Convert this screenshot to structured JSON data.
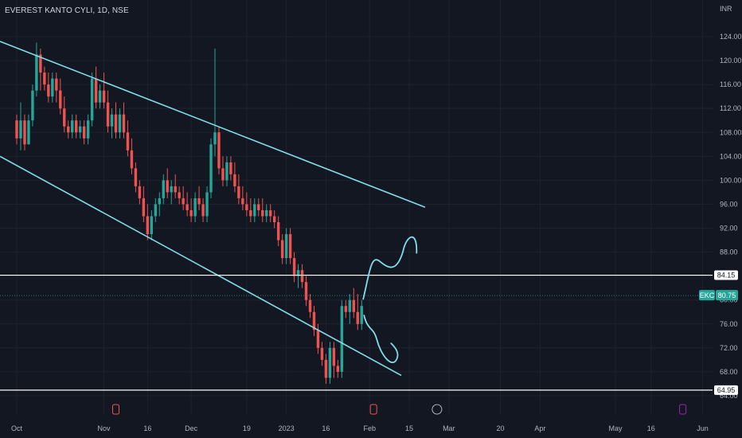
{
  "header": {
    "title": "EVEREST KANTO CYLI, 1D, NSE"
  },
  "chart_data": {
    "type": "candlestick",
    "currency_label": "INR",
    "y_ticks": [
      "124.00",
      "120.00",
      "116.00",
      "112.00",
      "108.00",
      "104.00",
      "100.00",
      "96.00",
      "92.00",
      "88.00",
      "84.00",
      "80.00",
      "76.00",
      "72.00",
      "68.00",
      "64.00"
    ],
    "y_values": [
      124,
      120,
      116,
      112,
      108,
      104,
      100,
      96,
      92,
      88,
      84,
      80,
      76,
      72,
      68,
      64
    ],
    "ylim": [
      62.2,
      126.3
    ],
    "x_ticks": [
      {
        "label": "Oct",
        "i": 0
      },
      {
        "label": "Nov",
        "i": 22
      },
      {
        "label": "16",
        "i": 33
      },
      {
        "label": "Dec",
        "i": 44
      },
      {
        "label": "19",
        "i": 58
      },
      {
        "label": "2023",
        "i": 68
      },
      {
        "label": "16",
        "i": 78
      },
      {
        "label": "Feb",
        "i": 89
      },
      {
        "label": "15",
        "i": 99
      },
      {
        "label": "Mar",
        "i": 109
      },
      {
        "label": "20",
        "i": 122
      },
      {
        "label": "Apr",
        "i": 132
      },
      {
        "label": "May",
        "i": 151
      },
      {
        "label": "16",
        "i": 160
      },
      {
        "label": "Jun",
        "i": 173
      }
    ],
    "candles": [
      [
        110,
        111,
        106,
        107
      ],
      [
        107,
        113,
        105,
        110
      ],
      [
        110,
        111,
        105,
        106
      ],
      [
        106,
        111,
        106,
        110
      ],
      [
        110,
        116,
        109,
        115
      ],
      [
        115,
        123,
        114,
        121
      ],
      [
        121,
        122,
        115,
        118
      ],
      [
        118,
        119,
        115,
        116
      ],
      [
        116,
        118,
        113,
        114
      ],
      [
        114,
        118,
        113,
        117
      ],
      [
        117,
        118,
        113,
        115
      ],
      [
        115,
        117,
        111,
        112
      ],
      [
        112,
        114,
        108,
        109
      ],
      [
        109,
        110,
        107,
        108
      ],
      [
        108,
        111,
        107,
        110
      ],
      [
        110,
        111,
        107,
        108
      ],
      [
        108,
        110,
        107,
        109
      ],
      [
        109,
        110,
        106,
        107
      ],
      [
        107,
        111,
        106,
        110
      ],
      [
        110,
        118,
        109,
        117
      ],
      [
        117,
        119,
        112,
        113
      ],
      [
        113,
        116,
        112,
        115
      ],
      [
        115,
        118,
        112,
        113
      ],
      [
        113,
        115,
        108,
        109
      ],
      [
        109,
        112,
        107,
        111
      ],
      [
        111,
        113,
        107,
        108
      ],
      [
        108,
        112,
        107,
        111
      ],
      [
        111,
        113,
        107,
        108
      ],
      [
        108,
        110,
        104,
        105
      ],
      [
        105,
        107,
        101,
        102
      ],
      [
        102,
        103,
        98,
        99
      ],
      [
        99,
        100,
        96,
        97
      ],
      [
        97,
        99,
        93,
        94
      ],
      [
        94,
        96,
        90,
        91
      ],
      [
        91,
        95,
        90,
        94
      ],
      [
        94,
        97,
        93,
        96
      ],
      [
        96,
        98,
        94,
        97
      ],
      [
        97,
        101,
        96,
        100
      ],
      [
        100,
        102,
        97,
        98
      ],
      [
        98,
        100,
        96,
        99
      ],
      [
        99,
        101,
        97,
        98
      ],
      [
        98,
        99,
        96,
        97
      ],
      [
        97,
        99,
        95,
        96
      ],
      [
        96,
        98,
        94,
        95
      ],
      [
        95,
        97,
        93,
        94
      ],
      [
        94,
        98,
        93,
        97
      ],
      [
        97,
        99,
        95,
        96
      ],
      [
        96,
        97,
        93,
        94
      ],
      [
        94,
        99,
        93,
        98
      ],
      [
        98,
        107,
        97,
        106
      ],
      [
        106,
        122,
        104,
        108
      ],
      [
        108,
        109,
        101,
        102
      ],
      [
        102,
        104,
        99,
        100
      ],
      [
        100,
        104,
        99,
        103
      ],
      [
        103,
        104,
        100,
        101
      ],
      [
        101,
        103,
        98,
        99
      ],
      [
        99,
        101,
        96,
        97
      ],
      [
        97,
        99,
        95,
        96
      ],
      [
        96,
        98,
        94,
        95
      ],
      [
        95,
        97,
        93,
        94
      ],
      [
        94,
        97,
        93,
        96
      ],
      [
        96,
        97,
        94,
        95
      ],
      [
        95,
        97,
        93,
        94
      ],
      [
        94,
        96,
        93,
        95
      ],
      [
        95,
        96,
        93,
        94
      ],
      [
        94,
        95,
        92,
        93
      ],
      [
        93,
        94,
        89,
        90
      ],
      [
        90,
        91,
        86,
        87
      ],
      [
        87,
        92,
        86,
        91
      ],
      [
        91,
        92,
        86,
        87
      ],
      [
        87,
        88,
        83,
        84
      ],
      [
        84,
        86,
        82,
        85
      ],
      [
        85,
        86,
        82,
        83
      ],
      [
        83,
        84,
        79,
        80
      ],
      [
        80,
        81,
        77,
        78
      ],
      [
        78,
        79,
        74,
        75
      ],
      [
        75,
        76,
        71,
        72
      ],
      [
        72,
        73,
        69,
        70
      ],
      [
        70,
        71,
        66,
        67
      ],
      [
        67,
        73,
        66,
        72
      ],
      [
        72,
        73,
        67,
        69
      ],
      [
        69,
        70,
        67,
        68
      ],
      [
        68,
        80,
        67,
        79
      ],
      [
        79,
        80,
        77,
        78
      ],
      [
        78,
        81,
        76,
        80
      ],
      [
        80,
        82,
        77,
        78
      ],
      [
        78,
        81,
        75,
        76
      ],
      [
        76,
        80,
        75,
        79
      ]
    ],
    "resistance_label": "84.15",
    "support_label": "64.95",
    "last_price_ticker": "EKC",
    "last_price_label": "80.75",
    "resistance": 84.15,
    "support": 64.95,
    "last_price": 80.75,
    "colors": {
      "up": "#26a69a",
      "down": "#ef5350",
      "trend": "#80deea",
      "level": "#ffffff",
      "last": "#26a69a"
    }
  }
}
